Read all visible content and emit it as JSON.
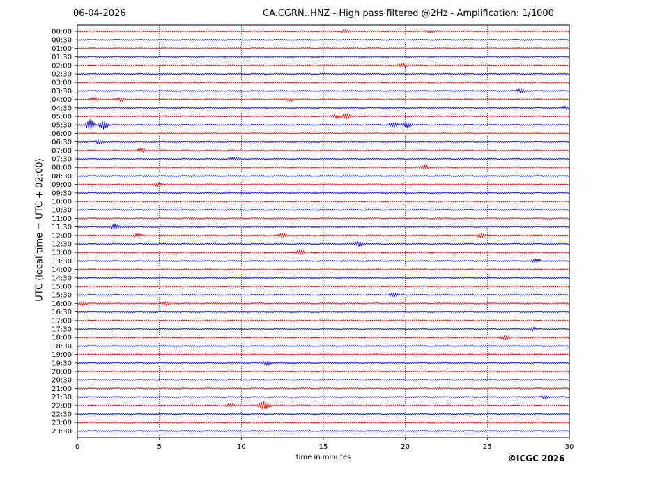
{
  "header": {
    "date": "06-04-2026",
    "title": "CA.CGRN..HNZ - High pass filtered @2Hz - Amplification: 1/1000"
  },
  "footer": {
    "copyright": "©ICGC 2026"
  },
  "colors": {
    "trace_even": "#ff0000",
    "trace_odd": "#0000ff",
    "gridline": "#000000",
    "axes": "#000000"
  },
  "chart_data": {
    "type": "line",
    "title": "CA.CGRN..HNZ - High pass filtered @2Hz - Amplification: 1/1000",
    "xlabel": "time in minutes",
    "ylabel": "UTC (local time = UTC + 02:00)",
    "xlim": [
      0,
      30
    ],
    "xticks": [
      0,
      5,
      10,
      15,
      20,
      25,
      30
    ],
    "vertical_gridlines_at": [
      5,
      10,
      15,
      20,
      25
    ],
    "grid": "dotted vertical",
    "rows": [
      "00:00",
      "00:30",
      "01:00",
      "01:30",
      "02:00",
      "02:30",
      "03:00",
      "03:30",
      "04:00",
      "04:30",
      "05:00",
      "05:30",
      "06:00",
      "06:30",
      "07:00",
      "07:30",
      "08:00",
      "08:30",
      "09:00",
      "09:30",
      "10:00",
      "10:30",
      "11:00",
      "11:30",
      "12:00",
      "12:30",
      "13:00",
      "13:30",
      "14:00",
      "14:30",
      "15:00",
      "15:30",
      "16:00",
      "16:30",
      "17:00",
      "17:30",
      "18:00",
      "18:30",
      "19:00",
      "19:30",
      "20:00",
      "20:30",
      "21:00",
      "21:30",
      "22:00",
      "22:30",
      "23:00",
      "23:30"
    ],
    "row_colors_alternate": [
      "red",
      "blue"
    ],
    "events": [
      {
        "row": "00:00",
        "minute": 16.3,
        "amp": 0.3
      },
      {
        "row": "00:00",
        "minute": 21.5,
        "amp": 0.3
      },
      {
        "row": "02:00",
        "minute": 19.9,
        "amp": 0.5
      },
      {
        "row": "03:30",
        "minute": 27.0,
        "amp": 0.5
      },
      {
        "row": "04:00",
        "minute": 1.0,
        "amp": 0.5
      },
      {
        "row": "04:00",
        "minute": 2.6,
        "amp": 0.6
      },
      {
        "row": "04:00",
        "minute": 13.0,
        "amp": 0.4
      },
      {
        "row": "04:30",
        "minute": 29.7,
        "amp": 0.4
      },
      {
        "row": "05:00",
        "minute": 15.8,
        "amp": 0.5
      },
      {
        "row": "05:00",
        "minute": 16.4,
        "amp": 0.8
      },
      {
        "row": "05:30",
        "minute": 0.8,
        "amp": 1.6
      },
      {
        "row": "05:30",
        "minute": 1.6,
        "amp": 1.2
      },
      {
        "row": "05:30",
        "minute": 19.3,
        "amp": 0.6
      },
      {
        "row": "05:30",
        "minute": 20.1,
        "amp": 0.8
      },
      {
        "row": "06:30",
        "minute": 1.3,
        "amp": 0.4
      },
      {
        "row": "07:00",
        "minute": 3.9,
        "amp": 0.5
      },
      {
        "row": "07:30",
        "minute": 9.6,
        "amp": 0.3
      },
      {
        "row": "08:00",
        "minute": 21.2,
        "amp": 0.5
      },
      {
        "row": "09:00",
        "minute": 4.9,
        "amp": 0.5
      },
      {
        "row": "11:30",
        "minute": 2.3,
        "amp": 0.8
      },
      {
        "row": "12:00",
        "minute": 3.7,
        "amp": 0.5
      },
      {
        "row": "12:00",
        "minute": 12.5,
        "amp": 0.5
      },
      {
        "row": "12:00",
        "minute": 24.6,
        "amp": 0.5
      },
      {
        "row": "12:30",
        "minute": 17.2,
        "amp": 0.7
      },
      {
        "row": "13:00",
        "minute": 13.6,
        "amp": 0.6
      },
      {
        "row": "13:30",
        "minute": 28.0,
        "amp": 0.6
      },
      {
        "row": "15:30",
        "minute": 19.3,
        "amp": 0.4
      },
      {
        "row": "16:00",
        "minute": 0.3,
        "amp": 0.4
      },
      {
        "row": "16:00",
        "minute": 5.4,
        "amp": 0.4
      },
      {
        "row": "17:30",
        "minute": 27.8,
        "amp": 0.4
      },
      {
        "row": "18:00",
        "minute": 26.1,
        "amp": 0.6
      },
      {
        "row": "19:30",
        "minute": 11.6,
        "amp": 0.7
      },
      {
        "row": "21:30",
        "minute": 28.5,
        "amp": 0.3
      },
      {
        "row": "22:00",
        "minute": 9.3,
        "amp": 0.4
      },
      {
        "row": "22:00",
        "minute": 11.3,
        "amp": 1.0
      },
      {
        "row": "22:00",
        "minute": 11.6,
        "amp": 0.6
      }
    ]
  }
}
